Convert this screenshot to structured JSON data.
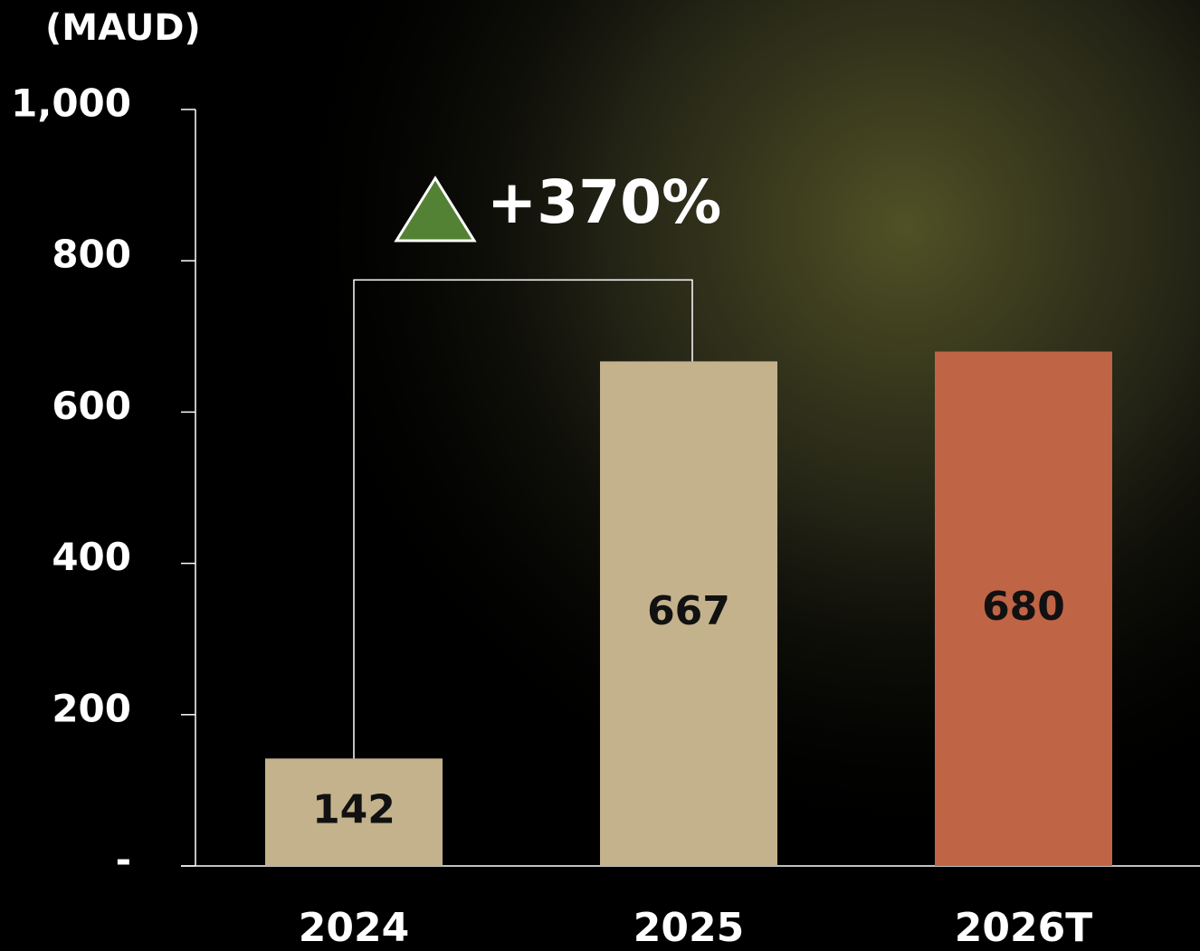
{
  "chart_data": {
    "type": "bar",
    "y_axis_label": "(MAUD)",
    "categories": [
      "2024",
      "2025",
      "2026T"
    ],
    "values": [
      142,
      667,
      680
    ],
    "colors": [
      "#c4b28c",
      "#c4b28c",
      "#c06446"
    ],
    "ylim": [
      0,
      1000
    ],
    "yticks": [
      {
        "value": 0,
        "label": "-"
      },
      200,
      400,
      600,
      800,
      {
        "value": 1000,
        "label": "1,000"
      }
    ],
    "annotation": "+370%",
    "annotation_color": "#548235"
  }
}
